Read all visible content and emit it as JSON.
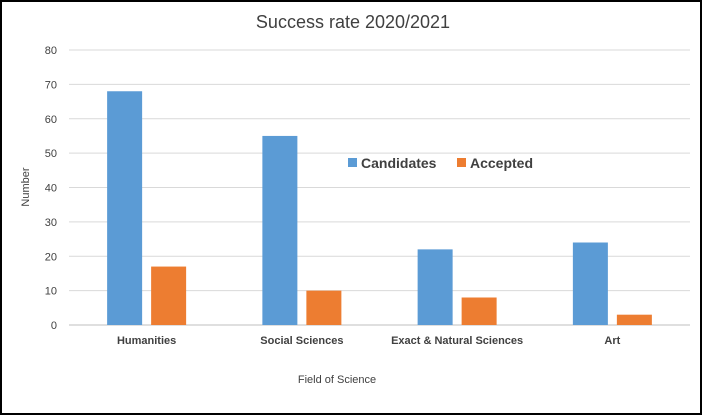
{
  "chart_data": {
    "type": "bar",
    "title": "Success rate 2020/2021",
    "xlabel": "Field of Science",
    "ylabel": "Number",
    "categories": [
      "Humanities",
      "Social Sciences",
      "Exact & Natural Sciences",
      "Art"
    ],
    "series": [
      {
        "name": "Candidates",
        "values": [
          68,
          55,
          22,
          24
        ],
        "color": "#5B9BD5"
      },
      {
        "name": "Accepted",
        "values": [
          17,
          10,
          8,
          3
        ],
        "color": "#ED7D31"
      }
    ],
    "ylim": [
      0,
      80
    ],
    "yticks": [
      "0",
      "10",
      "20",
      "30",
      "40",
      "50",
      "60",
      "70",
      "80"
    ],
    "grid": true,
    "legend_position": "center-right inside plot"
  }
}
